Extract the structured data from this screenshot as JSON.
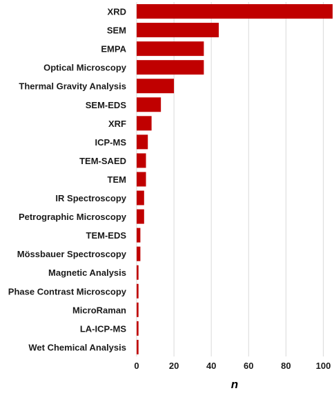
{
  "chart_data": {
    "type": "bar",
    "orientation": "horizontal",
    "categories": [
      "XRD",
      "SEM",
      "EMPA",
      "Optical Microscopy",
      "Thermal Gravity Analysis",
      "SEM-EDS",
      "XRF",
      "ICP-MS",
      "TEM-SAED",
      "TEM",
      "IR Spectroscopy",
      "Petrographic Microscopy",
      "TEM-EDS",
      "Mössbauer Spectroscopy",
      "Magnetic Analysis",
      "Phase Contrast Microscopy",
      "MicroRaman",
      "LA-ICP-MS",
      "Wet Chemical Analysis"
    ],
    "values": [
      105,
      44,
      36,
      36,
      20,
      13,
      8,
      6,
      5,
      5,
      4,
      4,
      2,
      2,
      1,
      1,
      1,
      1,
      1
    ],
    "xlabel": "n",
    "ylabel": "",
    "xlim": [
      0,
      105
    ],
    "xticks": [
      "0",
      "20",
      "40",
      "60",
      "80",
      "100"
    ],
    "grid": "vertical",
    "bar_color": "#c00000"
  }
}
